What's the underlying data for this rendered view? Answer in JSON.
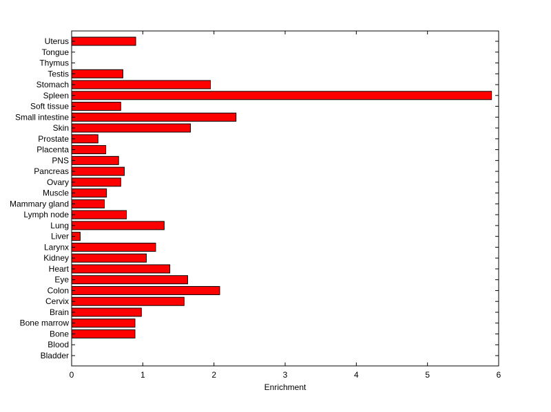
{
  "chart_data": {
    "type": "bar",
    "orientation": "horizontal",
    "categories": [
      "Bladder",
      "Blood",
      "Bone",
      "Bone marrow",
      "Brain",
      "Cervix",
      "Colon",
      "Eye",
      "Heart",
      "Kidney",
      "Larynx",
      "Liver",
      "Lung",
      "Lymph node",
      "Mammary gland",
      "Muscle",
      "Ovary",
      "Pancreas",
      "PNS",
      "Placenta",
      "Prostate",
      "Skin",
      "Small intestine",
      "Soft tissue",
      "Spleen",
      "Stomach",
      "Testis",
      "Thymus",
      "Tongue",
      "Uterus"
    ],
    "values": [
      0,
      0,
      0.89,
      0.89,
      0.98,
      1.58,
      2.08,
      1.63,
      1.38,
      1.05,
      1.18,
      0.12,
      1.3,
      0.77,
      0.46,
      0.49,
      0.69,
      0.74,
      0.66,
      0.48,
      0.37,
      1.67,
      2.31,
      0.69,
      5.9,
      1.95,
      0.72,
      0,
      0,
      0.9
    ],
    "title": "",
    "xlabel": "Enrichment",
    "ylabel": "",
    "xlim": [
      0,
      6
    ],
    "xticks": [
      0,
      1,
      2,
      3,
      4,
      5,
      6
    ],
    "grid": false,
    "bar_color": "#ff0000",
    "edge_color": "#000000"
  }
}
